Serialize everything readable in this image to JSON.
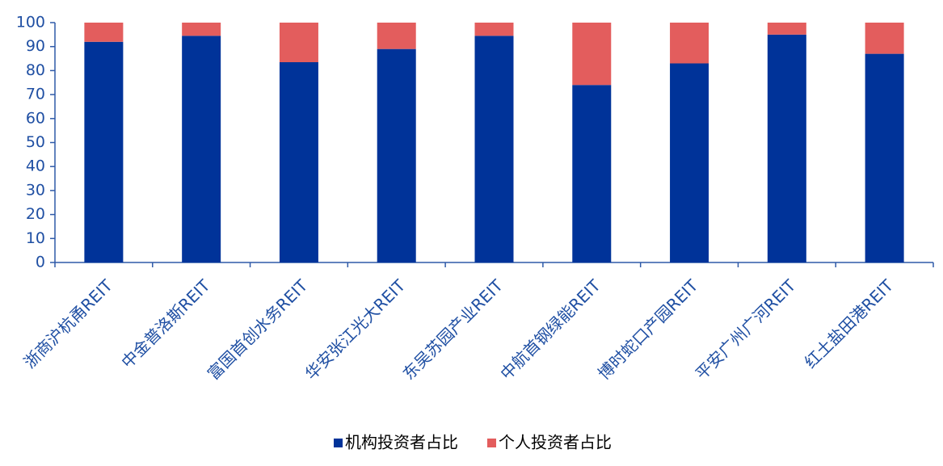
{
  "chart_data": {
    "type": "stacked_bar",
    "categories": [
      "浙商沪杭甬REIT",
      "中金普洛斯REIT",
      "富国首创水务REIT",
      "华安张江光大REIT",
      "东吴苏园产业REIT",
      "中航首钢绿能REIT",
      "博时蛇口产园REIT",
      "平安广州广河REIT",
      "红土盐田港REIT"
    ],
    "series": [
      {
        "name": "机构投资者占比",
        "color": "#003399",
        "values": [
          92,
          94.5,
          83.5,
          89,
          94.5,
          74,
          83,
          95,
          87
        ]
      },
      {
        "name": "个人投资者占比",
        "color": "#e35d5d",
        "values": [
          8,
          5.5,
          16.5,
          11,
          5.5,
          26,
          17,
          5,
          13
        ]
      }
    ],
    "ylim": [
      0,
      100
    ],
    "yticks": [
      0,
      10,
      20,
      30,
      40,
      50,
      60,
      70,
      80,
      90,
      100
    ],
    "grid": false,
    "legend": "bottom"
  }
}
